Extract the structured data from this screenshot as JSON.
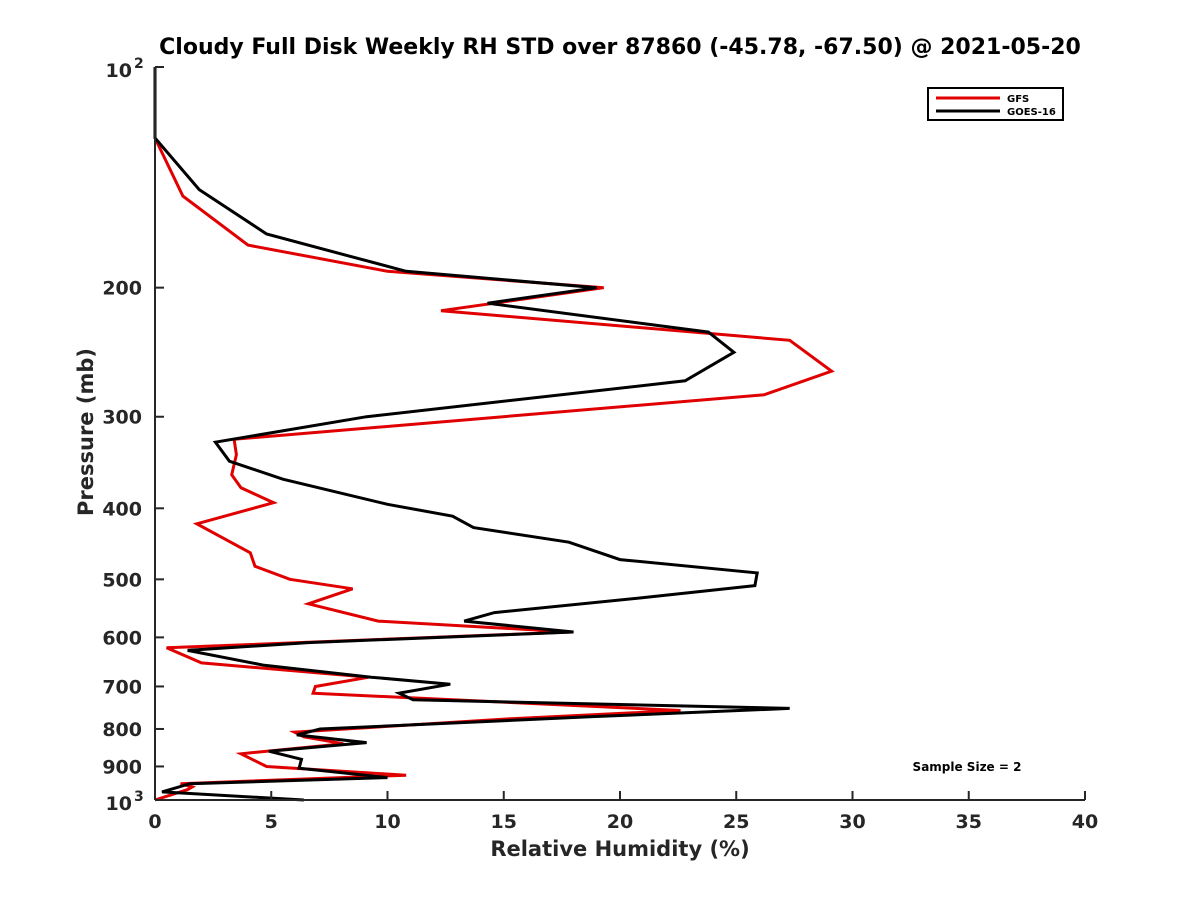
{
  "chart_data": {
    "type": "line",
    "title": "Cloudy Full Disk Weekly RH STD over 87860 (-45.78, -67.50) @ 2021-05-20",
    "xlabel": "Relative Humidity (%)",
    "ylabel": "Pressure (mb)",
    "xlim": [
      0,
      40
    ],
    "ylim": [
      100,
      1000
    ],
    "yscale": "log",
    "y_reversed": true,
    "x_ticks": [
      "0",
      "5",
      "10",
      "15",
      "20",
      "25",
      "30",
      "35",
      "40"
    ],
    "y_ticks": [
      {
        "value": 100,
        "base": "10",
        "exp": "2"
      },
      {
        "value": 200,
        "label": "200"
      },
      {
        "value": 300,
        "label": "300"
      },
      {
        "value": 400,
        "label": "400"
      },
      {
        "value": 500,
        "label": "500"
      },
      {
        "value": 600,
        "label": "600"
      },
      {
        "value": 700,
        "label": "700"
      },
      {
        "value": 800,
        "label": "800"
      },
      {
        "value": 900,
        "label": "900"
      },
      {
        "value": 1000,
        "base": "10",
        "exp": "3"
      }
    ],
    "legend_position": "top-right",
    "annotation": "Sample Size = 2",
    "series": [
      {
        "name": "GFS",
        "color": "#e00000",
        "points": [
          [
            0,
            100
          ],
          [
            0,
            125
          ],
          [
            1.2,
            150
          ],
          [
            4,
            175
          ],
          [
            10,
            190
          ],
          [
            19.3,
            200
          ],
          [
            12.3,
            215
          ],
          [
            27.3,
            236
          ],
          [
            29.1,
            260
          ],
          [
            26.2,
            280
          ],
          [
            3.4,
            322
          ],
          [
            3.5,
            338
          ],
          [
            3.3,
            360
          ],
          [
            3.7,
            375
          ],
          [
            5.1,
            393
          ],
          [
            1.8,
            420
          ],
          [
            4.1,
            460
          ],
          [
            4.3,
            480
          ],
          [
            5.8,
            500
          ],
          [
            8.5,
            515
          ],
          [
            6.6,
            540
          ],
          [
            9.6,
            570
          ],
          [
            17.9,
            590
          ],
          [
            0.5,
            620
          ],
          [
            2,
            650
          ],
          [
            9.2,
            680
          ],
          [
            6.9,
            700
          ],
          [
            6.8,
            715
          ],
          [
            22.6,
            755
          ],
          [
            15.2,
            775
          ],
          [
            6,
            808
          ],
          [
            6.4,
            820
          ],
          [
            8.1,
            838
          ],
          [
            3.7,
            865
          ],
          [
            4.8,
            900
          ],
          [
            10.8,
            925
          ],
          [
            1.1,
            950
          ],
          [
            1.6,
            960
          ],
          [
            1.4,
            968
          ],
          [
            0,
            1000
          ]
        ]
      },
      {
        "name": "GOES-16",
        "color": "#000000",
        "points": [
          [
            0,
            100
          ],
          [
            0,
            125
          ],
          [
            1.9,
            147
          ],
          [
            4.8,
            169
          ],
          [
            10.8,
            190
          ],
          [
            19,
            200
          ],
          [
            14.3,
            210
          ],
          [
            23.8,
            230
          ],
          [
            24.9,
            245
          ],
          [
            22.8,
            268
          ],
          [
            9.1,
            300
          ],
          [
            2.6,
            325
          ],
          [
            3.2,
            345
          ],
          [
            5.5,
            365
          ],
          [
            10,
            395
          ],
          [
            12.8,
            410
          ],
          [
            13.7,
            425
          ],
          [
            17.8,
            445
          ],
          [
            20,
            470
          ],
          [
            25.9,
            490
          ],
          [
            25.8,
            510
          ],
          [
            20.9,
            530
          ],
          [
            14.6,
            555
          ],
          [
            13.3,
            570
          ],
          [
            18,
            590
          ],
          [
            6.6,
            610
          ],
          [
            1.4,
            625
          ],
          [
            4.7,
            655
          ],
          [
            9.3,
            680
          ],
          [
            12.7,
            695
          ],
          [
            10.5,
            715
          ],
          [
            11.1,
            730
          ],
          [
            27.3,
            750
          ],
          [
            18.7,
            770
          ],
          [
            7.1,
            800
          ],
          [
            6.1,
            815
          ],
          [
            9.1,
            835
          ],
          [
            4.9,
            858
          ],
          [
            6.3,
            880
          ],
          [
            6.2,
            905
          ],
          [
            10,
            932
          ],
          [
            1.5,
            950
          ],
          [
            0.3,
            975
          ],
          [
            6.4,
            1000
          ]
        ]
      }
    ]
  }
}
